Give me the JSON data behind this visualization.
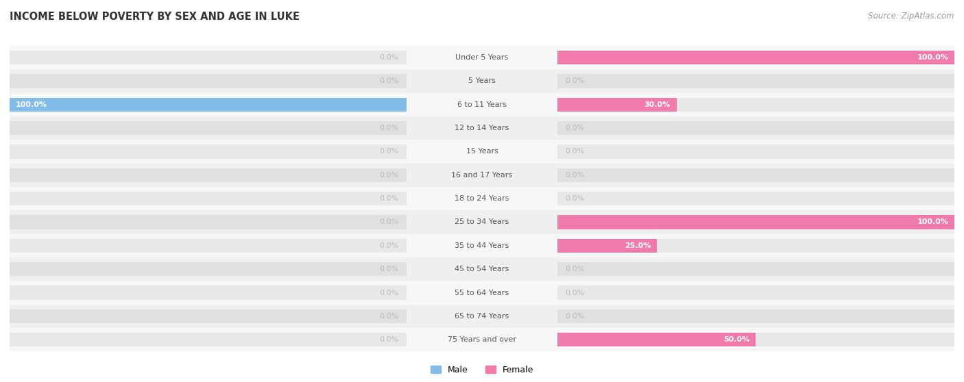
{
  "title": "INCOME BELOW POVERTY BY SEX AND AGE IN LUKE",
  "source_text": "Source: ZipAtlas.com",
  "categories": [
    "Under 5 Years",
    "5 Years",
    "6 to 11 Years",
    "12 to 14 Years",
    "15 Years",
    "16 and 17 Years",
    "18 to 24 Years",
    "25 to 34 Years",
    "35 to 44 Years",
    "45 to 54 Years",
    "55 to 64 Years",
    "65 to 74 Years",
    "75 Years and over"
  ],
  "male_values": [
    0.0,
    0.0,
    100.0,
    0.0,
    0.0,
    0.0,
    0.0,
    0.0,
    0.0,
    0.0,
    0.0,
    0.0,
    0.0
  ],
  "female_values": [
    100.0,
    0.0,
    30.0,
    0.0,
    0.0,
    0.0,
    0.0,
    100.0,
    25.0,
    0.0,
    0.0,
    0.0,
    50.0
  ],
  "male_color": "#82bce8",
  "female_color": "#f07aaa",
  "bar_bg_color_light": "#e8e8e8",
  "bar_bg_color_dark": "#e0e0e0",
  "row_bg_light": "#f7f7f7",
  "row_bg_dark": "#efefef",
  "max_val": 100.0,
  "label_fontsize": 8.0,
  "title_fontsize": 10.5,
  "source_fontsize": 8.5,
  "legend_fontsize": 9.0,
  "category_fontsize": 8.0,
  "bar_height": 0.6,
  "value_label_color_white": "#ffffff",
  "value_label_color_gray": "#bbbbbb",
  "axis_label_color": "#999999",
  "category_label_color": "#555555"
}
